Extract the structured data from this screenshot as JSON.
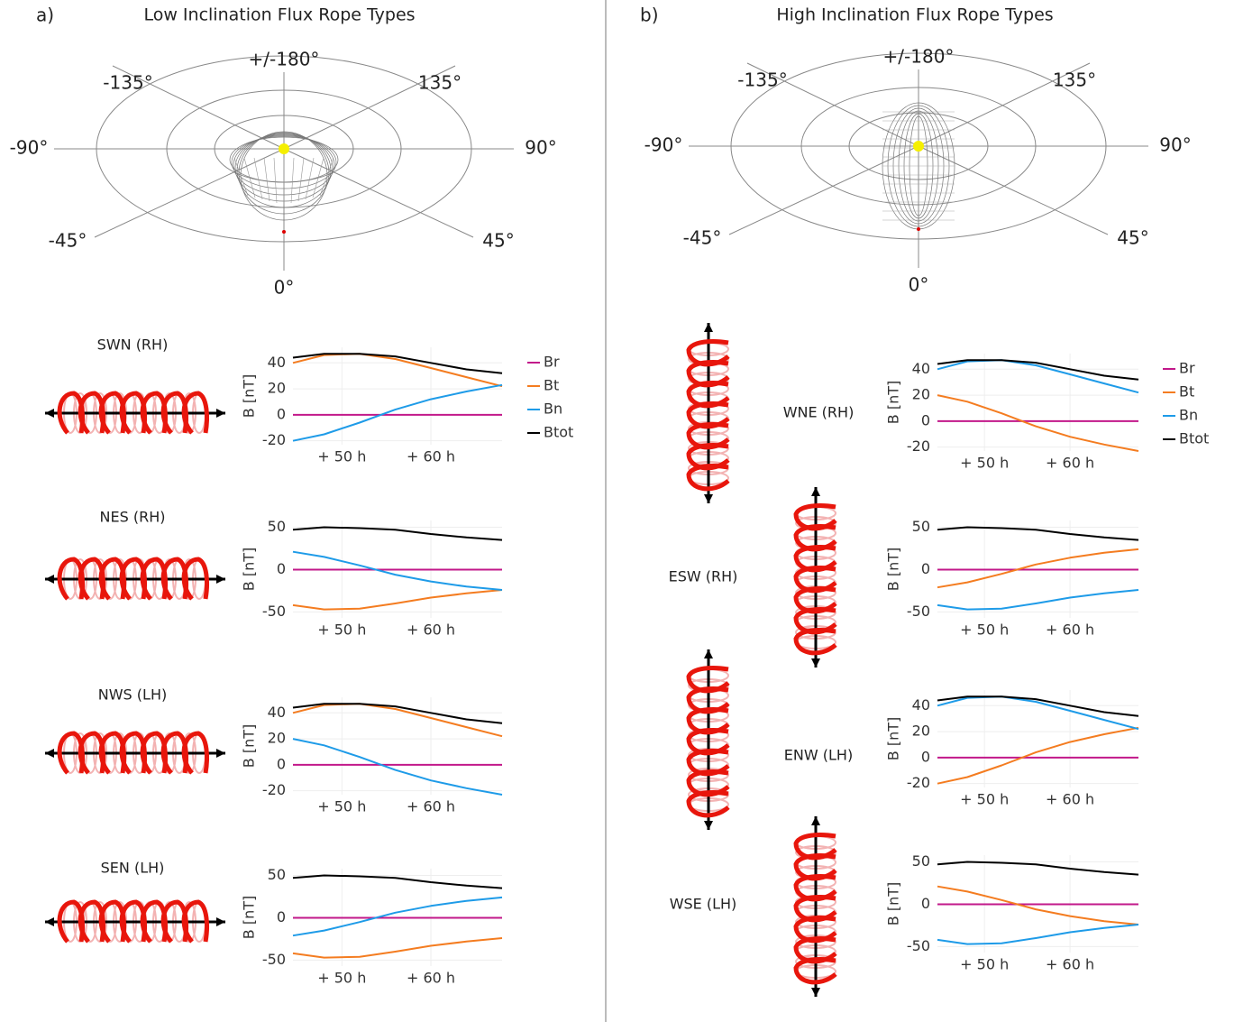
{
  "panels": [
    {
      "label": "a)",
      "title": "Low Inclination Flux Rope Types",
      "polar_labels": [
        "+/-180°",
        "-135°",
        "135°",
        "-90°",
        "90°",
        "-45°",
        "45°",
        "0°"
      ]
    },
    {
      "label": "b)",
      "title": "High Inclination Flux Rope Types",
      "polar_labels": [
        "+/-180°",
        "-135°",
        "135°",
        "-90°",
        "90°",
        "-45°",
        "45°",
        "0°"
      ]
    }
  ],
  "chart_data": [
    {
      "type": "line",
      "title": "SWN (RH)",
      "ylabel": "B [nT]",
      "x": [
        44.5,
        48,
        52,
        56,
        60,
        64,
        68
      ],
      "xlim": [
        44.5,
        68
      ],
      "xticks": [
        {
          "value": 50,
          "label": "+ 50 h"
        },
        {
          "value": 60,
          "label": "+ 60 h"
        }
      ],
      "ylim": [
        -23,
        52
      ],
      "yticks": [
        -20,
        0,
        20,
        40
      ],
      "grid": true,
      "legend": "right",
      "series": [
        {
          "name": "Br",
          "color": "#c2188a",
          "values": [
            0,
            0,
            0,
            0,
            0,
            0,
            0
          ]
        },
        {
          "name": "Bt",
          "color": "#f47c20",
          "values": [
            40,
            46,
            47,
            43,
            36,
            29,
            22
          ]
        },
        {
          "name": "Bn",
          "color": "#1e9be8",
          "values": [
            -20,
            -15,
            -6,
            4,
            12,
            18,
            23
          ]
        },
        {
          "name": "Btot",
          "color": "#000000",
          "values": [
            44,
            47,
            47,
            45,
            40,
            35,
            32
          ]
        }
      ]
    },
    {
      "type": "line",
      "title": "NES (RH)",
      "ylabel": "B [nT]",
      "x": [
        44.5,
        48,
        52,
        56,
        60,
        64,
        68
      ],
      "xlim": [
        44.5,
        68
      ],
      "xticks": [
        {
          "value": 50,
          "label": "+ 50 h"
        },
        {
          "value": 60,
          "label": "+ 60 h"
        }
      ],
      "ylim": [
        -57,
        58
      ],
      "yticks": [
        -50,
        0,
        50
      ],
      "grid": true,
      "series": [
        {
          "color": "#c2188a",
          "values": [
            0,
            0,
            0,
            0,
            0,
            0,
            0
          ]
        },
        {
          "color": "#f47c20",
          "values": [
            -42,
            -47,
            -46,
            -40,
            -33,
            -28,
            -24
          ]
        },
        {
          "color": "#1e9be8",
          "values": [
            21,
            15,
            5,
            -6,
            -14,
            -20,
            -24
          ]
        },
        {
          "color": "#000000",
          "values": [
            47,
            50,
            49,
            47,
            42,
            38,
            35
          ]
        }
      ]
    },
    {
      "type": "line",
      "title": "NWS (LH)",
      "ylabel": "B [nT]",
      "x": [
        44.5,
        48,
        52,
        56,
        60,
        64,
        68
      ],
      "xlim": [
        44.5,
        68
      ],
      "xticks": [
        {
          "value": 50,
          "label": "+ 50 h"
        },
        {
          "value": 60,
          "label": "+ 60 h"
        }
      ],
      "ylim": [
        -23,
        52
      ],
      "yticks": [
        -20,
        0,
        20,
        40
      ],
      "grid": true,
      "series": [
        {
          "color": "#c2188a",
          "values": [
            0,
            0,
            0,
            0,
            0,
            0,
            0
          ]
        },
        {
          "color": "#f47c20",
          "values": [
            40,
            46,
            47,
            43,
            36,
            29,
            22
          ]
        },
        {
          "color": "#1e9be8",
          "values": [
            20,
            15,
            6,
            -4,
            -12,
            -18,
            -23
          ]
        },
        {
          "color": "#000000",
          "values": [
            44,
            47,
            47,
            45,
            40,
            35,
            32
          ]
        }
      ]
    },
    {
      "type": "line",
      "title": "SEN (LH)",
      "ylabel": "B [nT]",
      "x": [
        44.5,
        48,
        52,
        56,
        60,
        64,
        68
      ],
      "xlim": [
        44.5,
        68
      ],
      "xticks": [
        {
          "value": 50,
          "label": "+ 50 h"
        },
        {
          "value": 60,
          "label": "+ 60 h"
        }
      ],
      "ylim": [
        -57,
        58
      ],
      "yticks": [
        -50,
        0,
        50
      ],
      "grid": true,
      "series": [
        {
          "color": "#c2188a",
          "values": [
            0,
            0,
            0,
            0,
            0,
            0,
            0
          ]
        },
        {
          "color": "#f47c20",
          "values": [
            -42,
            -47,
            -46,
            -40,
            -33,
            -28,
            -24
          ]
        },
        {
          "color": "#1e9be8",
          "values": [
            -21,
            -15,
            -5,
            6,
            14,
            20,
            24
          ]
        },
        {
          "color": "#000000",
          "values": [
            47,
            50,
            49,
            47,
            42,
            38,
            35
          ]
        }
      ]
    },
    {
      "type": "line",
      "title": "WNE (RH)",
      "ylabel": "B [nT]",
      "x": [
        44.5,
        48,
        52,
        56,
        60,
        64,
        68
      ],
      "xlim": [
        44.5,
        68
      ],
      "xticks": [
        {
          "value": 50,
          "label": "+ 50 h"
        },
        {
          "value": 60,
          "label": "+ 60 h"
        }
      ],
      "ylim": [
        -23,
        52
      ],
      "yticks": [
        -20,
        0,
        20,
        40
      ],
      "grid": true,
      "legend": "right",
      "series": [
        {
          "name": "Br",
          "color": "#c2188a",
          "values": [
            0,
            0,
            0,
            0,
            0,
            0,
            0
          ]
        },
        {
          "name": "Bt",
          "color": "#f47c20",
          "values": [
            20,
            15,
            6,
            -4,
            -12,
            -18,
            -23
          ]
        },
        {
          "name": "Bn",
          "color": "#1e9be8",
          "values": [
            40,
            46,
            47,
            43,
            36,
            29,
            22
          ]
        },
        {
          "name": "Btot",
          "color": "#000000",
          "values": [
            44,
            47,
            47,
            45,
            40,
            35,
            32
          ]
        }
      ]
    },
    {
      "type": "line",
      "title": "ESW (RH)",
      "ylabel": "B [nT]",
      "x": [
        44.5,
        48,
        52,
        56,
        60,
        64,
        68
      ],
      "xlim": [
        44.5,
        68
      ],
      "xticks": [
        {
          "value": 50,
          "label": "+ 50 h"
        },
        {
          "value": 60,
          "label": "+ 60 h"
        }
      ],
      "ylim": [
        -57,
        58
      ],
      "yticks": [
        -50,
        0,
        50
      ],
      "grid": true,
      "series": [
        {
          "color": "#c2188a",
          "values": [
            0,
            0,
            0,
            0,
            0,
            0,
            0
          ]
        },
        {
          "color": "#f47c20",
          "values": [
            -21,
            -15,
            -5,
            6,
            14,
            20,
            24
          ]
        },
        {
          "color": "#1e9be8",
          "values": [
            -42,
            -47,
            -46,
            -40,
            -33,
            -28,
            -24
          ]
        },
        {
          "color": "#000000",
          "values": [
            47,
            50,
            49,
            47,
            42,
            38,
            35
          ]
        }
      ]
    },
    {
      "type": "line",
      "title": "ENW (LH)",
      "ylabel": "B [nT]",
      "x": [
        44.5,
        48,
        52,
        56,
        60,
        64,
        68
      ],
      "xlim": [
        44.5,
        68
      ],
      "xticks": [
        {
          "value": 50,
          "label": "+ 50 h"
        },
        {
          "value": 60,
          "label": "+ 60 h"
        }
      ],
      "ylim": [
        -23,
        52
      ],
      "yticks": [
        -20,
        0,
        20,
        40
      ],
      "grid": true,
      "series": [
        {
          "color": "#c2188a",
          "values": [
            0,
            0,
            0,
            0,
            0,
            0,
            0
          ]
        },
        {
          "color": "#f47c20",
          "values": [
            -20,
            -15,
            -6,
            4,
            12,
            18,
            23
          ]
        },
        {
          "color": "#1e9be8",
          "values": [
            40,
            46,
            47,
            43,
            36,
            29,
            22
          ]
        },
        {
          "color": "#000000",
          "values": [
            44,
            47,
            47,
            45,
            40,
            35,
            32
          ]
        }
      ]
    },
    {
      "type": "line",
      "title": "WSE (LH)",
      "ylabel": "B [nT]",
      "x": [
        44.5,
        48,
        52,
        56,
        60,
        64,
        68
      ],
      "xlim": [
        44.5,
        68
      ],
      "xticks": [
        {
          "value": 50,
          "label": "+ 50 h"
        },
        {
          "value": 60,
          "label": "+ 60 h"
        }
      ],
      "ylim": [
        -57,
        58
      ],
      "yticks": [
        -50,
        0,
        50
      ],
      "grid": true,
      "series": [
        {
          "color": "#c2188a",
          "values": [
            0,
            0,
            0,
            0,
            0,
            0,
            0
          ]
        },
        {
          "color": "#f47c20",
          "values": [
            21,
            15,
            5,
            -6,
            -14,
            -20,
            -24
          ]
        },
        {
          "color": "#1e9be8",
          "values": [
            -42,
            -47,
            -46,
            -40,
            -33,
            -28,
            -24
          ]
        },
        {
          "color": "#000000",
          "values": [
            47,
            50,
            49,
            47,
            42,
            38,
            35
          ]
        }
      ]
    }
  ]
}
